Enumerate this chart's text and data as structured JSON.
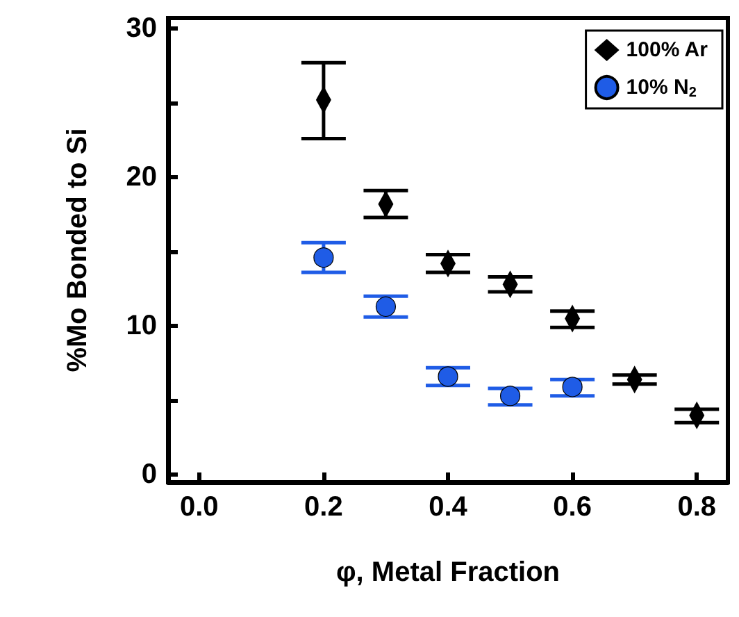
{
  "chart_data": {
    "type": "scatter",
    "xlabel": "φ, Metal Fraction",
    "ylabel": "%Mo Bonded to Si",
    "xlim": [
      -0.05,
      0.85
    ],
    "xticks": [
      {
        "value": 0,
        "label": "0.0"
      },
      0.2,
      0.4,
      0.6,
      0.8
    ],
    "ylim": [
      -0.5,
      30.7
    ],
    "yticks": [
      0,
      {
        "value": 5,
        "label": null
      },
      10,
      {
        "value": 15,
        "label": null
      },
      20,
      {
        "value": 25,
        "label": null
      },
      30
    ],
    "grid": false,
    "legend": "top right",
    "series": [
      {
        "name": "100% Ar",
        "color": "#000000",
        "marker": "diamond",
        "x": [
          0.2,
          0.3,
          0.4,
          0.5,
          0.6,
          0.7,
          0.8
        ],
        "values": [
          25.2,
          18.2,
          14.2,
          12.8,
          10.5,
          6.4,
          4.0
        ],
        "errors": [
          [
            22.6,
            27.7
          ],
          [
            17.3,
            19.1
          ],
          [
            13.6,
            14.8
          ],
          [
            12.3,
            13.3
          ],
          [
            9.9,
            11.0
          ],
          [
            6.1,
            6.7
          ],
          [
            3.5,
            4.4
          ]
        ]
      },
      {
        "name": "10% N$_{2}$",
        "color": "#1f5ce6",
        "marker": "circle",
        "x": [
          0.2,
          0.3,
          0.4,
          0.5,
          0.6
        ],
        "values": [
          14.6,
          11.3,
          6.6,
          5.3,
          5.9
        ],
        "errors": [
          [
            13.6,
            15.6
          ],
          [
            10.6,
            12.0
          ],
          [
            6.0,
            7.2
          ],
          [
            4.7,
            5.8
          ],
          [
            5.3,
            6.4
          ]
        ]
      }
    ]
  }
}
